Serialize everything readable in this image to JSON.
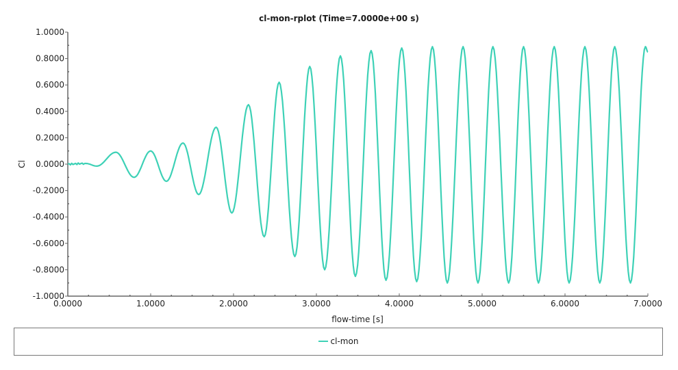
{
  "chart_data": {
    "type": "line",
    "title": "cl-mon-rplot (Time=7.0000e+00 s)",
    "xlabel": "flow-time [s]",
    "ylabel": "Cl",
    "xlim": [
      0,
      7
    ],
    "ylim": [
      -1,
      1
    ],
    "x_ticks": [
      "0.0000",
      "1.0000",
      "2.0000",
      "3.0000",
      "4.0000",
      "5.0000",
      "6.0000",
      "7.0000"
    ],
    "y_ticks": [
      "1.0000",
      "0.8000",
      "0.6000",
      "0.4000",
      "0.2000",
      "0.0000",
      "-0.2000",
      "-0.4000",
      "-0.6000",
      "-0.8000",
      "-1.0000"
    ],
    "grid": false,
    "legend_position": "bottom",
    "series": [
      {
        "name": "cl-mon",
        "color": "#3dd1b6",
        "extrema": {
          "x": [
            0.0,
            0.22,
            0.35,
            0.58,
            0.8,
            1.0,
            1.19,
            1.39,
            1.58,
            1.79,
            1.98,
            2.18,
            2.37,
            2.55,
            2.74,
            2.92,
            3.1,
            3.29,
            3.47,
            3.66,
            3.84,
            4.03,
            4.21,
            4.4,
            4.58,
            4.77,
            4.95,
            5.13,
            5.32,
            5.5,
            5.68,
            5.87,
            6.05,
            6.24,
            6.42,
            6.6,
            6.79,
            6.97,
            7.0
          ],
          "y": [
            0.0,
            0.005,
            -0.015,
            0.09,
            -0.1,
            0.1,
            -0.13,
            0.16,
            -0.23,
            0.28,
            -0.37,
            0.45,
            -0.55,
            0.62,
            -0.7,
            0.74,
            -0.8,
            0.82,
            -0.85,
            0.86,
            -0.88,
            0.88,
            -0.89,
            0.89,
            -0.9,
            0.89,
            -0.9,
            0.89,
            -0.9,
            0.89,
            -0.9,
            0.89,
            -0.9,
            0.89,
            -0.9,
            0.89,
            -0.9,
            0.89,
            0.85
          ]
        }
      }
    ]
  },
  "legend": {
    "items": [
      {
        "label": "cl-mon",
        "color": "#3dd1b6"
      }
    ]
  }
}
